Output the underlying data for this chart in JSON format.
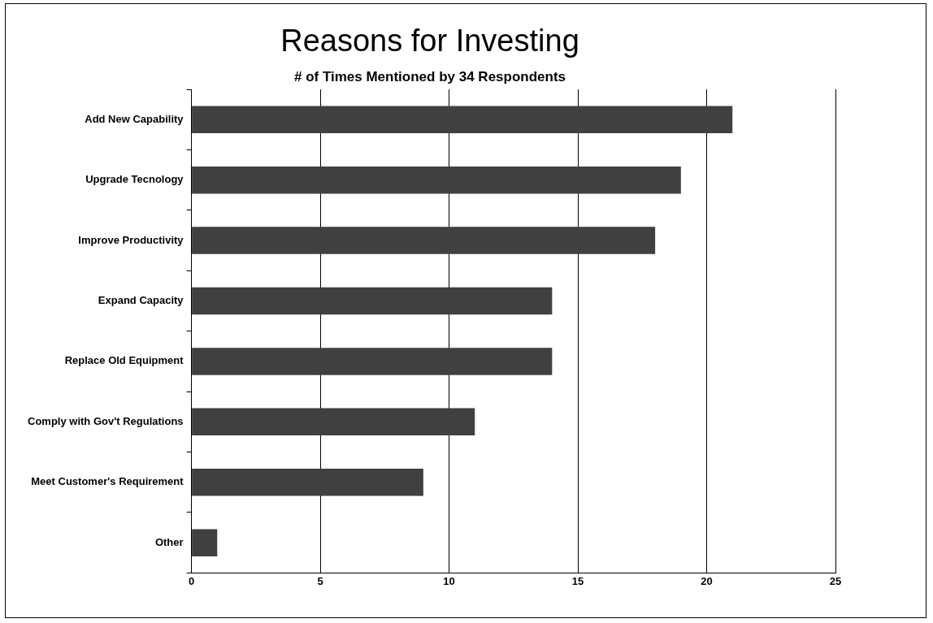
{
  "chart_data": {
    "type": "bar",
    "orientation": "horizontal",
    "title": "Reasons for Investing",
    "subtitle": "# of Times Mentioned by 34 Respondents",
    "categories": [
      "Add New Capability",
      "Upgrade Tecnology",
      "Improve Productivity",
      "Expand Capacity",
      "Replace Old Equipment",
      "Comply with Gov't Regulations",
      "Meet Customer's Requirement",
      "Other"
    ],
    "values": [
      21,
      19,
      18,
      14,
      14,
      11,
      9,
      1
    ],
    "color": "#404040",
    "xlim": [
      0,
      25
    ],
    "xticks": [
      0,
      5,
      10,
      15,
      20,
      25
    ],
    "grid": "x",
    "legend": false
  }
}
